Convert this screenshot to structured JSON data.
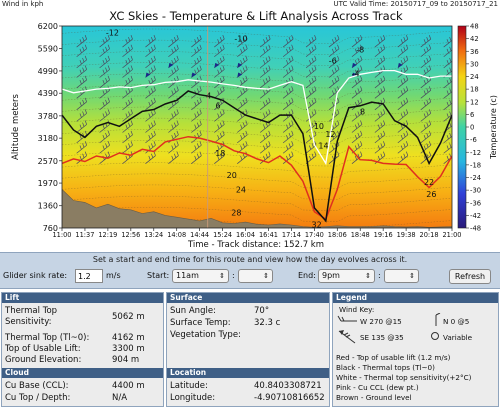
{
  "top": {
    "units_label": "Wind in kph",
    "valid_time": "UTC Valid Time: 20150717_09 to 20150717_21"
  },
  "chart_data": {
    "type": "heatmap",
    "title": "XC Skies - Temperature & Lift Analysis Across Track",
    "xlabel": "Time - Track distance: 152.7 km",
    "ylabel": "Altitude meters",
    "colorbar_label": "Temperature (c)",
    "x_ticks": [
      "11:00",
      "11:37",
      "12:19",
      "12:56",
      "13:24",
      "14:08",
      "14:44",
      "15:24",
      "16:04",
      "16:41",
      "17:14",
      "17:40",
      "18:06",
      "18:48",
      "19:16",
      "19:38",
      "20:18",
      "21:00"
    ],
    "y_ticks": [
      760,
      1360,
      1970,
      2570,
      3180,
      3780,
      4390,
      4990,
      5590,
      6200
    ],
    "ylim": [
      760,
      6200
    ],
    "colorbar_ticks": [
      48,
      42,
      36,
      30,
      24,
      18,
      12,
      6,
      0,
      -6,
      -12,
      -18,
      -24,
      -30,
      -36,
      -42,
      -48
    ],
    "colorbar_range": [
      -48,
      48
    ],
    "contour_labels": [
      {
        "t": "-12",
        "x": 2.2,
        "y": 5950
      },
      {
        "t": "-10",
        "x": 7.8,
        "y": 5780
      },
      {
        "t": "-8",
        "x": 13.0,
        "y": 5490
      },
      {
        "t": "-6",
        "x": 11.8,
        "y": 5190
      },
      {
        "t": "-4",
        "x": 12.8,
        "y": 4840
      },
      {
        "t": "4",
        "x": 6.4,
        "y": 4250
      },
      {
        "t": "6",
        "x": 6.8,
        "y": 3980
      },
      {
        "t": "8",
        "x": 13.1,
        "y": 3810
      },
      {
        "t": "10",
        "x": 11.2,
        "y": 3420
      },
      {
        "t": "12",
        "x": 11.7,
        "y": 3210
      },
      {
        "t": "14",
        "x": 11.4,
        "y": 2900
      },
      {
        "t": "18",
        "x": 6.9,
        "y": 2700
      },
      {
        "t": "20",
        "x": 7.4,
        "y": 2110
      },
      {
        "t": "22",
        "x": 16.0,
        "y": 1920
      },
      {
        "t": "24",
        "x": 7.8,
        "y": 1720
      },
      {
        "t": "26",
        "x": 16.1,
        "y": 1600
      },
      {
        "t": "28",
        "x": 7.6,
        "y": 1090
      },
      {
        "t": "32",
        "x": 11.1,
        "y": 780
      }
    ],
    "series": [
      {
        "name": "Red - Top of usable lift (1.2 m/s)",
        "color": "#e0301e",
        "x": [
          0,
          0.5,
          1,
          1.5,
          2,
          2.5,
          3,
          3.5,
          4,
          4.5,
          5,
          5.5,
          6,
          6.5,
          7,
          7.5,
          8,
          8.5,
          9,
          9.5,
          10,
          10.5,
          11,
          11.5,
          12,
          12.5,
          13,
          13.5,
          14,
          14.5,
          15,
          15.5,
          16,
          16.5,
          17
        ],
        "y": [
          2500,
          2620,
          2550,
          2700,
          2640,
          2780,
          2720,
          2880,
          2820,
          3080,
          3150,
          3220,
          3180,
          3100,
          3010,
          2840,
          2760,
          2620,
          2520,
          2700,
          2450,
          2020,
          1200,
          1000,
          1800,
          2950,
          2600,
          2580,
          2500,
          2480,
          2470,
          2140,
          1850,
          2150,
          2700
        ]
      },
      {
        "name": "Black - Thermal tops (Tl~0)",
        "color": "#111111",
        "x": [
          0,
          0.5,
          1,
          1.5,
          2,
          2.5,
          3,
          3.5,
          4,
          4.5,
          5,
          5.5,
          6,
          6.5,
          7,
          7.5,
          8,
          8.5,
          9,
          9.5,
          10,
          10.5,
          11,
          11.5,
          12,
          12.5,
          13,
          13.5,
          14,
          14.5,
          15,
          15.5,
          16,
          16.5,
          17
        ],
        "y": [
          3800,
          3400,
          3200,
          3500,
          3600,
          3500,
          3700,
          3900,
          3950,
          4100,
          4200,
          4450,
          4350,
          4300,
          4200,
          4000,
          3800,
          3700,
          3600,
          3800,
          3800,
          3300,
          1300,
          950,
          3100,
          4000,
          4050,
          4150,
          4100,
          3650,
          3500,
          3200,
          2500,
          3050,
          3800
        ]
      },
      {
        "name": "White - Thermal top sensitivity(+2°C)",
        "color": "#ffffff",
        "x": [
          0,
          0.5,
          1,
          1.5,
          2,
          2.5,
          3,
          3.5,
          4,
          4.5,
          5,
          5.5,
          6,
          6.5,
          7,
          7.5,
          8,
          8.5,
          9,
          9.5,
          10,
          10.5,
          11,
          11.5,
          12,
          12.5,
          13,
          13.5,
          14,
          14.5,
          15,
          15.5,
          16,
          16.5,
          17
        ],
        "y": [
          4500,
          4400,
          4450,
          4500,
          4520,
          4560,
          4540,
          4600,
          4620,
          4680,
          4700,
          4750,
          4720,
          4690,
          4640,
          4600,
          4550,
          4520,
          4500,
          4600,
          4700,
          4600,
          3000,
          2500,
          4400,
          4800,
          4900,
          4950,
          5000,
          5000,
          4900,
          4900,
          4800,
          4850,
          4850
        ]
      },
      {
        "name": "Brown - Ground level",
        "color": "#7a6a52",
        "x": [
          0,
          0.5,
          1,
          1.5,
          2,
          2.5,
          3,
          3.5,
          4,
          4.5,
          5,
          5.5,
          6,
          6.5,
          7,
          7.5,
          8,
          8.5,
          9,
          9.5,
          10,
          10.5,
          11,
          11.5,
          12,
          12.5,
          13,
          13.5,
          14,
          14.5,
          15,
          15.5,
          16,
          16.5,
          17
        ],
        "y": [
          1800,
          1500,
          1450,
          1300,
          1400,
          1280,
          1250,
          1150,
          1200,
          1100,
          1050,
          1000,
          950,
          1020,
          900,
          880,
          920,
          860,
          840,
          870,
          840,
          800,
          780,
          800,
          820,
          800,
          800,
          800,
          820,
          800,
          790,
          800,
          780,
          790,
          800
        ]
      }
    ],
    "wind_rows_y": [
      5740,
      5480,
      5180,
      4920,
      4640,
      4360,
      4050,
      3740,
      3440,
      3160,
      2880,
      2600
    ],
    "wind_cols_x": [
      0.9,
      1.9,
      2.9,
      3.9,
      4.9,
      5.9,
      6.9,
      7.9,
      8.9,
      9.9,
      10.9,
      11.9,
      12.9,
      13.9,
      14.9,
      15.9,
      16.9
    ],
    "wind_flagged": [
      [
        2,
        4
      ],
      [
        2,
        6
      ],
      [
        2,
        7
      ],
      [
        2,
        12
      ],
      [
        3,
        3
      ],
      [
        3,
        5
      ],
      [
        3,
        7
      ],
      [
        3,
        12
      ],
      [
        2,
        14
      ]
    ],
    "marker_line_x": 6.35
  },
  "controls": {
    "title": "Set a start and end time for this route and view how the day evolves across it.",
    "sink_label": "Glider sink rate:",
    "sink_value": "1.2",
    "sink_unit": "m/s",
    "start_label": "Start:",
    "start_hour": "11am",
    "start_min": "",
    "end_label": "End:",
    "end_hour": "9pm",
    "end_min": "",
    "refresh_label": "Refresh"
  },
  "lift_panel": {
    "header": "Lift",
    "rows": [
      {
        "k1": "Thermal Top",
        "k2": "Sensitivity:",
        "v": "5062 m"
      },
      {
        "k": "Thermal Top (Tl~0):",
        "v": "4162 m"
      },
      {
        "k": "Top of Usable Lift:",
        "v": "3300 m"
      },
      {
        "k": "Ground Elevation:",
        "v": "904 m"
      }
    ],
    "cloud_header": "Cloud",
    "cloud_rows": [
      {
        "k": "Cu Base (CCL):",
        "v": "4400 m"
      },
      {
        "k": "Cu Top / Depth:",
        "v": "N/A"
      }
    ]
  },
  "surface_panel": {
    "header": "Surface",
    "rows": [
      {
        "k": "Sun Angle:",
        "v": "70°"
      },
      {
        "k": "Surface Temp:",
        "v": "32.3 c"
      },
      {
        "k": "Vegetation Type:",
        "v": ""
      }
    ],
    "location_header": "Location",
    "location_rows": [
      {
        "k": "Latitude:",
        "v": "40.8403308721"
      },
      {
        "k": "Longitude:",
        "v": "-4.90710816652"
      }
    ]
  },
  "legend_panel": {
    "header": "Legend",
    "wind_key": "Wind Key:",
    "key1": "W 270 @15",
    "key2": "N 0 @5",
    "key3": "SE 135 @35",
    "key4": "Variable",
    "lines": [
      "Red - Top of usable lift (1.2 m/s)",
      "Black - Thermal tops (Tl~0)",
      "White - Thermal top sensitivity(+2°C)",
      "Pink - Cu CCL (dew pt.)",
      "Brown - Ground level"
    ]
  }
}
